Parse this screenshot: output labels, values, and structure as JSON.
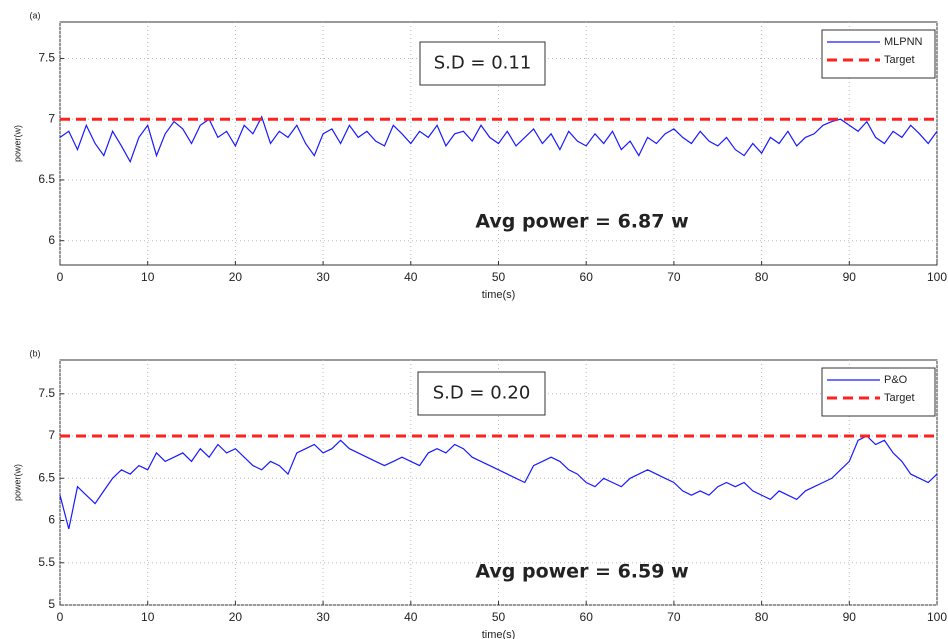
{
  "chart_data": [
    {
      "type": "line",
      "label": "(a)",
      "xlabel": "time(s)",
      "ylabel": "power(w)",
      "x": [
        0,
        1,
        2,
        3,
        4,
        5,
        6,
        7,
        8,
        9,
        10,
        11,
        12,
        13,
        14,
        15,
        16,
        17,
        18,
        19,
        20,
        21,
        22,
        23,
        24,
        25,
        26,
        27,
        28,
        29,
        30,
        31,
        32,
        33,
        34,
        35,
        36,
        37,
        38,
        39,
        40,
        41,
        42,
        43,
        44,
        45,
        46,
        47,
        48,
        49,
        50,
        51,
        52,
        53,
        54,
        55,
        56,
        57,
        58,
        59,
        60,
        61,
        62,
        63,
        64,
        65,
        66,
        67,
        68,
        69,
        70,
        71,
        72,
        73,
        74,
        75,
        76,
        77,
        78,
        79,
        80,
        81,
        82,
        83,
        84,
        85,
        86,
        87,
        88,
        89,
        90,
        91,
        92,
        93,
        94,
        95,
        96,
        97,
        98,
        99,
        100
      ],
      "xlim": [
        0,
        100
      ],
      "xticks": [
        0,
        10,
        20,
        30,
        40,
        50,
        60,
        70,
        80,
        90,
        100
      ],
      "ylim": [
        5.8,
        7.8
      ],
      "yticks": [
        6,
        6.5,
        7,
        7.5
      ],
      "grid": true,
      "legend": "upper right",
      "annotations": [
        "S.D = 0.11",
        "Avg power = 6.87 w"
      ],
      "series": [
        {
          "name": "MLPNN",
          "color": "#1a1aff",
          "linestyle": "solid",
          "values": [
            6.85,
            6.9,
            6.75,
            6.95,
            6.8,
            6.7,
            6.9,
            6.78,
            6.65,
            6.85,
            6.95,
            6.7,
            6.88,
            6.98,
            6.92,
            6.8,
            6.95,
            7.0,
            6.85,
            6.9,
            6.78,
            6.95,
            6.88,
            7.02,
            6.8,
            6.9,
            6.85,
            6.95,
            6.8,
            6.7,
            6.88,
            6.92,
            6.8,
            6.95,
            6.85,
            6.9,
            6.82,
            6.78,
            6.95,
            6.88,
            6.8,
            6.9,
            6.85,
            6.95,
            6.78,
            6.88,
            6.9,
            6.82,
            6.95,
            6.85,
            6.8,
            6.9,
            6.78,
            6.85,
            6.92,
            6.8,
            6.88,
            6.75,
            6.9,
            6.82,
            6.78,
            6.88,
            6.8,
            6.9,
            6.75,
            6.82,
            6.7,
            6.85,
            6.8,
            6.88,
            6.92,
            6.85,
            6.8,
            6.9,
            6.82,
            6.78,
            6.85,
            6.75,
            6.7,
            6.8,
            6.72,
            6.85,
            6.8,
            6.9,
            6.78,
            6.85,
            6.88,
            6.95,
            6.98,
            7.0,
            6.95,
            6.9,
            6.98,
            6.85,
            6.8,
            6.9,
            6.85,
            6.95,
            6.88,
            6.8,
            6.9
          ]
        },
        {
          "name": "Target",
          "color": "#ff2020",
          "linestyle": "dashed",
          "x": [
            0,
            100
          ],
          "values": [
            7,
            7
          ]
        }
      ]
    },
    {
      "type": "line",
      "label": "(b)",
      "xlabel": "time(s)",
      "ylabel": "power(w)",
      "x": [
        0,
        1,
        2,
        3,
        4,
        5,
        6,
        7,
        8,
        9,
        10,
        11,
        12,
        13,
        14,
        15,
        16,
        17,
        18,
        19,
        20,
        21,
        22,
        23,
        24,
        25,
        26,
        27,
        28,
        29,
        30,
        31,
        32,
        33,
        34,
        35,
        36,
        37,
        38,
        39,
        40,
        41,
        42,
        43,
        44,
        45,
        46,
        47,
        48,
        49,
        50,
        51,
        52,
        53,
        54,
        55,
        56,
        57,
        58,
        59,
        60,
        61,
        62,
        63,
        64,
        65,
        66,
        67,
        68,
        69,
        70,
        71,
        72,
        73,
        74,
        75,
        76,
        77,
        78,
        79,
        80,
        81,
        82,
        83,
        84,
        85,
        86,
        87,
        88,
        89,
        90,
        91,
        92,
        93,
        94,
        95,
        96,
        97,
        98,
        99,
        100
      ],
      "xlim": [
        0,
        100
      ],
      "xticks": [
        0,
        10,
        20,
        30,
        40,
        50,
        60,
        70,
        80,
        90,
        100
      ],
      "ylim": [
        5,
        7.9
      ],
      "yticks": [
        5,
        5.5,
        6,
        6.5,
        7,
        7.5
      ],
      "grid": true,
      "legend": "upper right",
      "annotations": [
        "S.D = 0.20",
        "Avg power = 6.59 w"
      ],
      "series": [
        {
          "name": "P&O",
          "color": "#1a1aff",
          "linestyle": "solid",
          "values": [
            6.3,
            5.9,
            6.4,
            6.3,
            6.2,
            6.35,
            6.5,
            6.6,
            6.55,
            6.65,
            6.6,
            6.8,
            6.7,
            6.75,
            6.8,
            6.7,
            6.85,
            6.75,
            6.9,
            6.8,
            6.85,
            6.75,
            6.65,
            6.6,
            6.7,
            6.65,
            6.55,
            6.8,
            6.85,
            6.9,
            6.8,
            6.85,
            6.95,
            6.85,
            6.8,
            6.75,
            6.7,
            6.65,
            6.7,
            6.75,
            6.7,
            6.65,
            6.8,
            6.85,
            6.8,
            6.9,
            6.85,
            6.75,
            6.7,
            6.65,
            6.6,
            6.55,
            6.5,
            6.45,
            6.65,
            6.7,
            6.75,
            6.7,
            6.6,
            6.55,
            6.45,
            6.4,
            6.5,
            6.45,
            6.4,
            6.5,
            6.55,
            6.6,
            6.55,
            6.5,
            6.45,
            6.35,
            6.3,
            6.35,
            6.3,
            6.4,
            6.45,
            6.4,
            6.45,
            6.35,
            6.3,
            6.25,
            6.35,
            6.3,
            6.25,
            6.35,
            6.4,
            6.45,
            6.5,
            6.6,
            6.7,
            6.95,
            7.0,
            6.9,
            6.95,
            6.8,
            6.7,
            6.55,
            6.5,
            6.45,
            6.55
          ]
        },
        {
          "name": "Target",
          "color": "#ff2020",
          "linestyle": "dashed",
          "x": [
            0,
            100
          ],
          "values": [
            7,
            7
          ]
        }
      ]
    }
  ]
}
